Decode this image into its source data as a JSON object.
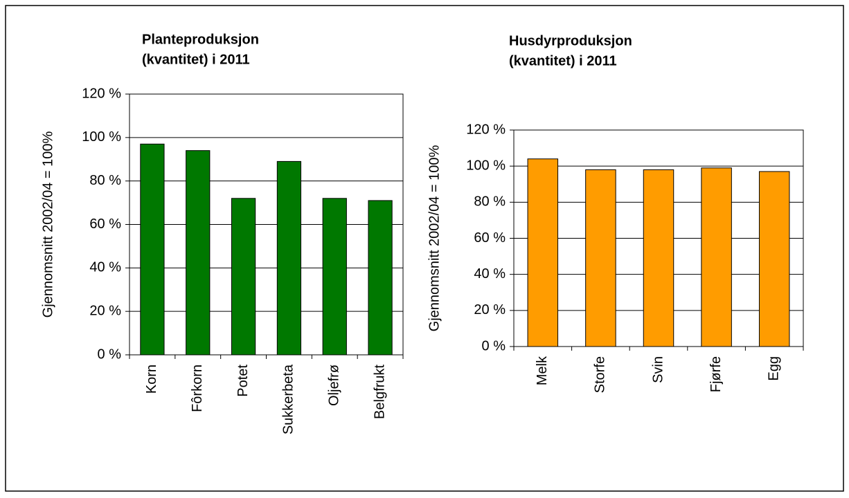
{
  "chart_data": [
    {
      "type": "bar",
      "title": [
        "Planteproduksjon",
        "(kvantitet) i 2011"
      ],
      "y_label": "Gjennomsnitt 2002/04 = 100%",
      "categories": [
        "Korn",
        "Fôrkorn",
        "Potet",
        "Sukkerbeta",
        "Oljefrø",
        "Belgfrukt"
      ],
      "values": [
        97,
        94,
        72,
        89,
        72,
        71
      ],
      "color": "#007800",
      "ylim": [
        0,
        120
      ],
      "yticks": [
        {
          "value": 0,
          "label": "0 %"
        },
        {
          "value": 20,
          "label": "20 %"
        },
        {
          "value": 40,
          "label": "40 %"
        },
        {
          "value": 60,
          "label": "60 %"
        },
        {
          "value": 80,
          "label": "80 %"
        },
        {
          "value": 100,
          "label": "100 %"
        },
        {
          "value": 120,
          "label": "120 %"
        }
      ],
      "grid": true
    },
    {
      "type": "bar",
      "title": [
        "Husdyrproduksjon",
        "(kvantitet) i 2011"
      ],
      "y_label": "Gjennomsnitt 2002/04 = 100%",
      "categories": [
        "Melk",
        "Storfe",
        "Svin",
        "Fjørfe",
        "Egg"
      ],
      "values": [
        104,
        98,
        98,
        99,
        97
      ],
      "color": "#ff9c00",
      "ylim": [
        0,
        120
      ],
      "yticks": [
        {
          "value": 0,
          "label": "0 %"
        },
        {
          "value": 20,
          "label": "20 %"
        },
        {
          "value": 40,
          "label": "40 %"
        },
        {
          "value": 60,
          "label": "60 %"
        },
        {
          "value": 80,
          "label": "80 %"
        },
        {
          "value": 100,
          "label": "100 %"
        },
        {
          "value": 120,
          "label": "120 %"
        }
      ],
      "grid": true
    }
  ]
}
